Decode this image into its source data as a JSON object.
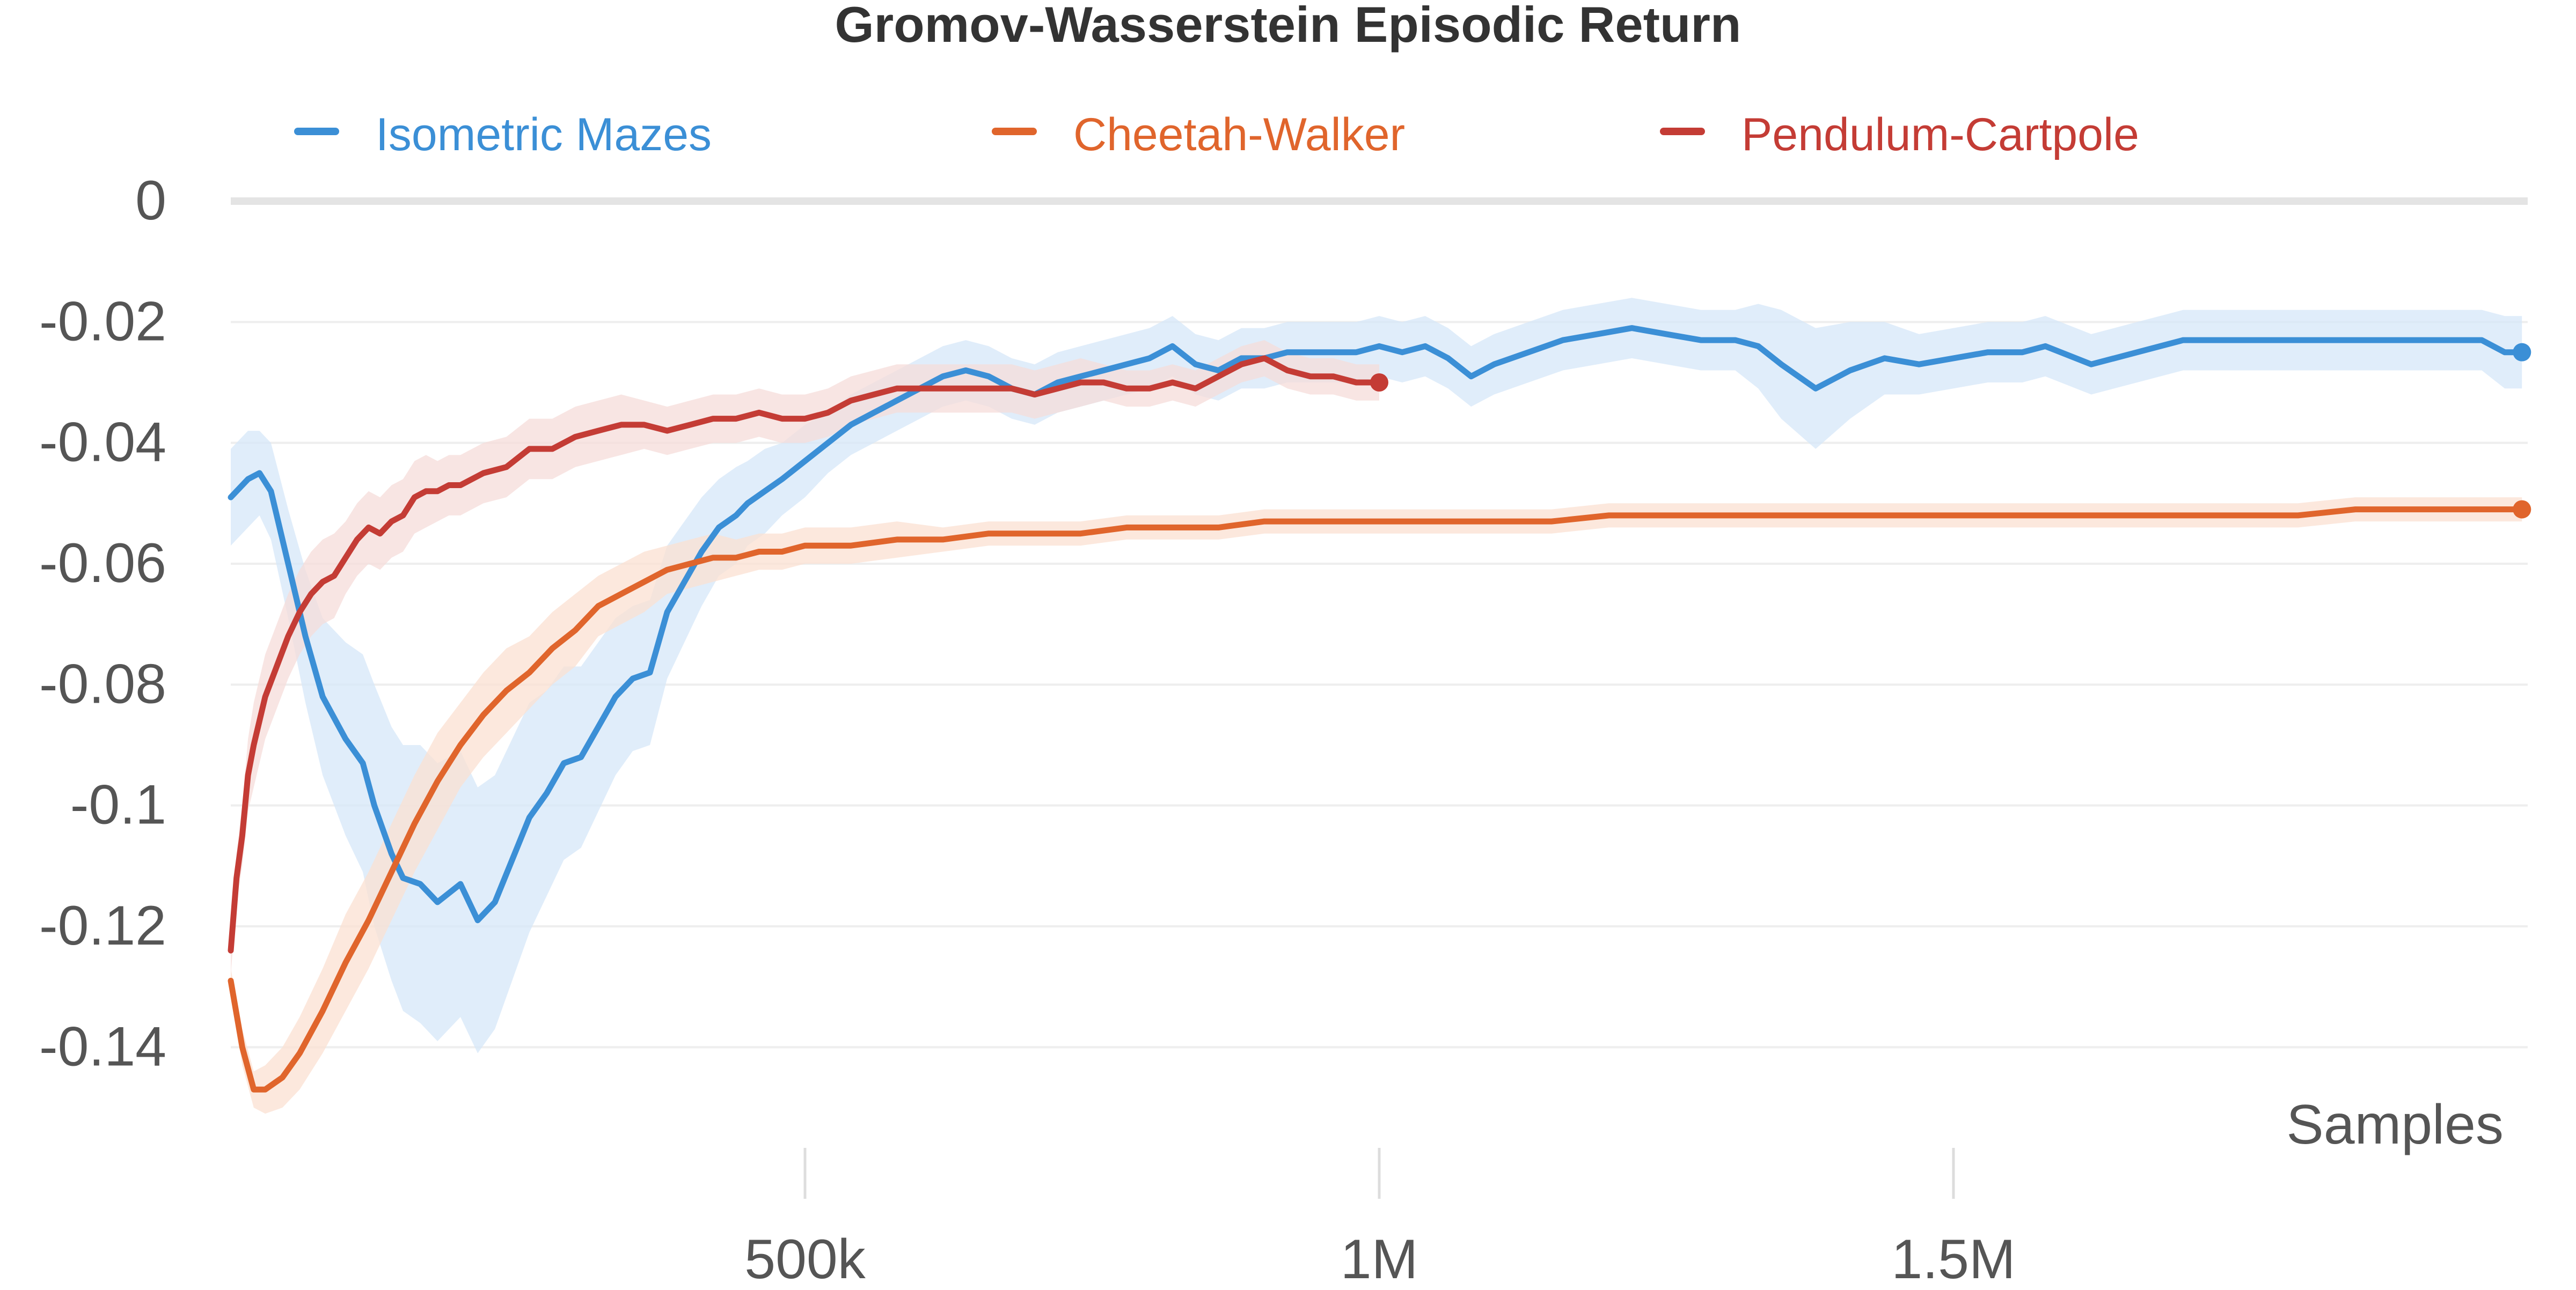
{
  "chart_data": {
    "type": "line",
    "title": "Gromov-Wasserstein Episodic Return",
    "xlabel": "Samples",
    "ylabel": "",
    "xlim": [
      0,
      2000000
    ],
    "ylim": [
      -0.15,
      0
    ],
    "x_ticks": [
      {
        "value": 500000,
        "label": "500k"
      },
      {
        "value": 1000000,
        "label": "1M"
      },
      {
        "value": 1500000,
        "label": "1.5M"
      }
    ],
    "y_ticks": [
      {
        "value": 0,
        "label": "0"
      },
      {
        "value": -0.02,
        "label": "-0.02"
      },
      {
        "value": -0.04,
        "label": "-0.04"
      },
      {
        "value": -0.06,
        "label": "-0.06"
      },
      {
        "value": -0.08,
        "label": "-0.08"
      },
      {
        "value": -0.1,
        "label": "-0.1"
      },
      {
        "value": -0.12,
        "label": "-0.12"
      },
      {
        "value": -0.14,
        "label": "-0.14"
      }
    ],
    "grid": true,
    "legend_position": "top",
    "series": [
      {
        "name": "Isometric Mazes",
        "color": "#3b8fd6",
        "band_color": "#d6e7f8",
        "x": [
          0,
          15000,
          25000,
          35000,
          50000,
          65000,
          80000,
          100000,
          115000,
          125000,
          140000,
          150000,
          165000,
          180000,
          200000,
          215000,
          230000,
          245000,
          260000,
          275000,
          290000,
          305000,
          320000,
          335000,
          350000,
          365000,
          380000,
          395000,
          410000,
          425000,
          440000,
          450000,
          465000,
          480000,
          500000,
          520000,
          540000,
          560000,
          580000,
          600000,
          620000,
          640000,
          660000,
          680000,
          700000,
          720000,
          740000,
          760000,
          780000,
          800000,
          820000,
          840000,
          860000,
          880000,
          900000,
          920000,
          940000,
          960000,
          980000,
          1000000,
          1020000,
          1040000,
          1060000,
          1080000,
          1100000,
          1130000,
          1160000,
          1190000,
          1220000,
          1250000,
          1280000,
          1310000,
          1330000,
          1350000,
          1380000,
          1410000,
          1440000,
          1470000,
          1500000,
          1530000,
          1560000,
          1580000,
          1620000,
          1660000,
          1700000,
          1740000,
          1780000,
          1820000,
          1860000,
          1900000,
          1940000,
          1960000,
          1980000,
          1995000
        ],
        "y": [
          -0.049,
          -0.046,
          -0.045,
          -0.048,
          -0.06,
          -0.072,
          -0.082,
          -0.089,
          -0.093,
          -0.1,
          -0.108,
          -0.112,
          -0.113,
          -0.116,
          -0.113,
          -0.119,
          -0.116,
          -0.109,
          -0.102,
          -0.098,
          -0.093,
          -0.092,
          -0.087,
          -0.082,
          -0.079,
          -0.078,
          -0.068,
          -0.063,
          -0.058,
          -0.054,
          -0.052,
          -0.05,
          -0.048,
          -0.046,
          -0.043,
          -0.04,
          -0.037,
          -0.035,
          -0.033,
          -0.031,
          -0.029,
          -0.028,
          -0.029,
          -0.031,
          -0.032,
          -0.03,
          -0.029,
          -0.028,
          -0.027,
          -0.026,
          -0.024,
          -0.027,
          -0.028,
          -0.026,
          -0.026,
          -0.025,
          -0.025,
          -0.025,
          -0.025,
          -0.024,
          -0.025,
          -0.024,
          -0.026,
          -0.029,
          -0.027,
          -0.025,
          -0.023,
          -0.022,
          -0.021,
          -0.022,
          -0.023,
          -0.023,
          -0.024,
          -0.027,
          -0.031,
          -0.028,
          -0.026,
          -0.027,
          -0.026,
          -0.025,
          -0.025,
          -0.024,
          -0.027,
          -0.025,
          -0.023,
          -0.023,
          -0.023,
          -0.023,
          -0.023,
          -0.023,
          -0.023,
          -0.023,
          -0.025,
          -0.025
        ],
        "band": [
          0.008,
          0.008,
          0.007,
          0.008,
          0.009,
          0.011,
          0.013,
          0.016,
          0.018,
          0.02,
          0.021,
          0.022,
          0.023,
          0.023,
          0.022,
          0.022,
          0.021,
          0.02,
          0.019,
          0.017,
          0.016,
          0.015,
          0.014,
          0.013,
          0.012,
          0.012,
          0.011,
          0.01,
          0.009,
          0.008,
          0.008,
          0.007,
          0.007,
          0.006,
          0.006,
          0.005,
          0.005,
          0.005,
          0.005,
          0.005,
          0.005,
          0.005,
          0.005,
          0.005,
          0.005,
          0.005,
          0.005,
          0.005,
          0.005,
          0.005,
          0.005,
          0.005,
          0.005,
          0.005,
          0.005,
          0.005,
          0.005,
          0.005,
          0.005,
          0.005,
          0.005,
          0.005,
          0.005,
          0.005,
          0.005,
          0.005,
          0.005,
          0.005,
          0.005,
          0.005,
          0.005,
          0.005,
          0.007,
          0.009,
          0.01,
          0.008,
          0.006,
          0.005,
          0.005,
          0.005,
          0.005,
          0.005,
          0.005,
          0.005,
          0.005,
          0.005,
          0.005,
          0.005,
          0.005,
          0.005,
          0.005,
          0.005,
          0.006,
          0.006
        ]
      },
      {
        "name": "Cheetah-Walker",
        "color": "#e0652c",
        "band_color": "#fbe0d2",
        "x": [
          0,
          10000,
          20000,
          30000,
          45000,
          60000,
          80000,
          100000,
          120000,
          140000,
          160000,
          180000,
          200000,
          220000,
          240000,
          260000,
          280000,
          300000,
          320000,
          340000,
          360000,
          380000,
          400000,
          420000,
          440000,
          460000,
          480000,
          500000,
          540000,
          580000,
          620000,
          660000,
          700000,
          740000,
          780000,
          820000,
          860000,
          900000,
          950000,
          1000000,
          1050000,
          1100000,
          1150000,
          1200000,
          1250000,
          1300000,
          1350000,
          1400000,
          1450000,
          1500000,
          1550000,
          1600000,
          1650000,
          1700000,
          1750000,
          1800000,
          1850000,
          1900000,
          1950000,
          1995000
        ],
        "y": [
          -0.129,
          -0.14,
          -0.147,
          -0.147,
          -0.145,
          -0.141,
          -0.134,
          -0.126,
          -0.119,
          -0.111,
          -0.103,
          -0.096,
          -0.09,
          -0.085,
          -0.081,
          -0.078,
          -0.074,
          -0.071,
          -0.067,
          -0.065,
          -0.063,
          -0.061,
          -0.06,
          -0.059,
          -0.059,
          -0.058,
          -0.058,
          -0.057,
          -0.057,
          -0.056,
          -0.056,
          -0.055,
          -0.055,
          -0.055,
          -0.054,
          -0.054,
          -0.054,
          -0.053,
          -0.053,
          -0.053,
          -0.053,
          -0.053,
          -0.053,
          -0.052,
          -0.052,
          -0.052,
          -0.052,
          -0.052,
          -0.052,
          -0.052,
          -0.052,
          -0.052,
          -0.052,
          -0.052,
          -0.052,
          -0.052,
          -0.051,
          -0.051,
          -0.051,
          -0.051
        ],
        "band": [
          0.002,
          0.003,
          0.003,
          0.004,
          0.005,
          0.006,
          0.007,
          0.008,
          0.008,
          0.008,
          0.008,
          0.008,
          0.007,
          0.007,
          0.007,
          0.006,
          0.006,
          0.006,
          0.005,
          0.005,
          0.005,
          0.004,
          0.004,
          0.004,
          0.003,
          0.003,
          0.003,
          0.003,
          0.003,
          0.003,
          0.002,
          0.002,
          0.002,
          0.002,
          0.002,
          0.002,
          0.002,
          0.002,
          0.002,
          0.002,
          0.002,
          0.002,
          0.002,
          0.002,
          0.002,
          0.002,
          0.002,
          0.002,
          0.002,
          0.002,
          0.002,
          0.002,
          0.002,
          0.002,
          0.002,
          0.002,
          0.002,
          0.002,
          0.002,
          0.002
        ]
      },
      {
        "name": "Pendulum-Cartpole",
        "color": "#c43c35",
        "band_color": "#f6dcda",
        "x": [
          0,
          5000,
          10000,
          15000,
          20000,
          30000,
          40000,
          50000,
          60000,
          70000,
          80000,
          90000,
          100000,
          110000,
          120000,
          130000,
          140000,
          150000,
          160000,
          170000,
          180000,
          190000,
          200000,
          220000,
          240000,
          260000,
          280000,
          300000,
          320000,
          340000,
          360000,
          380000,
          400000,
          420000,
          440000,
          460000,
          480000,
          500000,
          520000,
          540000,
          560000,
          580000,
          600000,
          620000,
          640000,
          660000,
          680000,
          700000,
          720000,
          740000,
          760000,
          780000,
          800000,
          820000,
          840000,
          860000,
          880000,
          900000,
          920000,
          940000,
          960000,
          980000,
          1000000
        ],
        "y": [
          -0.124,
          -0.112,
          -0.105,
          -0.095,
          -0.09,
          -0.082,
          -0.077,
          -0.072,
          -0.068,
          -0.065,
          -0.063,
          -0.062,
          -0.059,
          -0.056,
          -0.054,
          -0.055,
          -0.053,
          -0.052,
          -0.049,
          -0.048,
          -0.048,
          -0.047,
          -0.047,
          -0.045,
          -0.044,
          -0.041,
          -0.041,
          -0.039,
          -0.038,
          -0.037,
          -0.037,
          -0.038,
          -0.037,
          -0.036,
          -0.036,
          -0.035,
          -0.036,
          -0.036,
          -0.035,
          -0.033,
          -0.032,
          -0.031,
          -0.031,
          -0.031,
          -0.031,
          -0.031,
          -0.031,
          -0.032,
          -0.031,
          -0.03,
          -0.03,
          -0.031,
          -0.031,
          -0.03,
          -0.031,
          -0.029,
          -0.027,
          -0.026,
          -0.028,
          -0.029,
          -0.029,
          -0.03,
          -0.03
        ],
        "band": [
          0.004,
          0.004,
          0.005,
          0.006,
          0.007,
          0.007,
          0.007,
          0.007,
          0.007,
          0.007,
          0.007,
          0.007,
          0.006,
          0.006,
          0.006,
          0.006,
          0.006,
          0.006,
          0.006,
          0.006,
          0.005,
          0.005,
          0.005,
          0.005,
          0.005,
          0.005,
          0.005,
          0.005,
          0.005,
          0.005,
          0.004,
          0.004,
          0.004,
          0.004,
          0.004,
          0.004,
          0.004,
          0.004,
          0.004,
          0.004,
          0.004,
          0.004,
          0.004,
          0.004,
          0.004,
          0.004,
          0.004,
          0.004,
          0.004,
          0.004,
          0.003,
          0.003,
          0.003,
          0.003,
          0.003,
          0.003,
          0.003,
          0.003,
          0.003,
          0.003,
          0.003,
          0.003,
          0.003
        ]
      }
    ]
  }
}
